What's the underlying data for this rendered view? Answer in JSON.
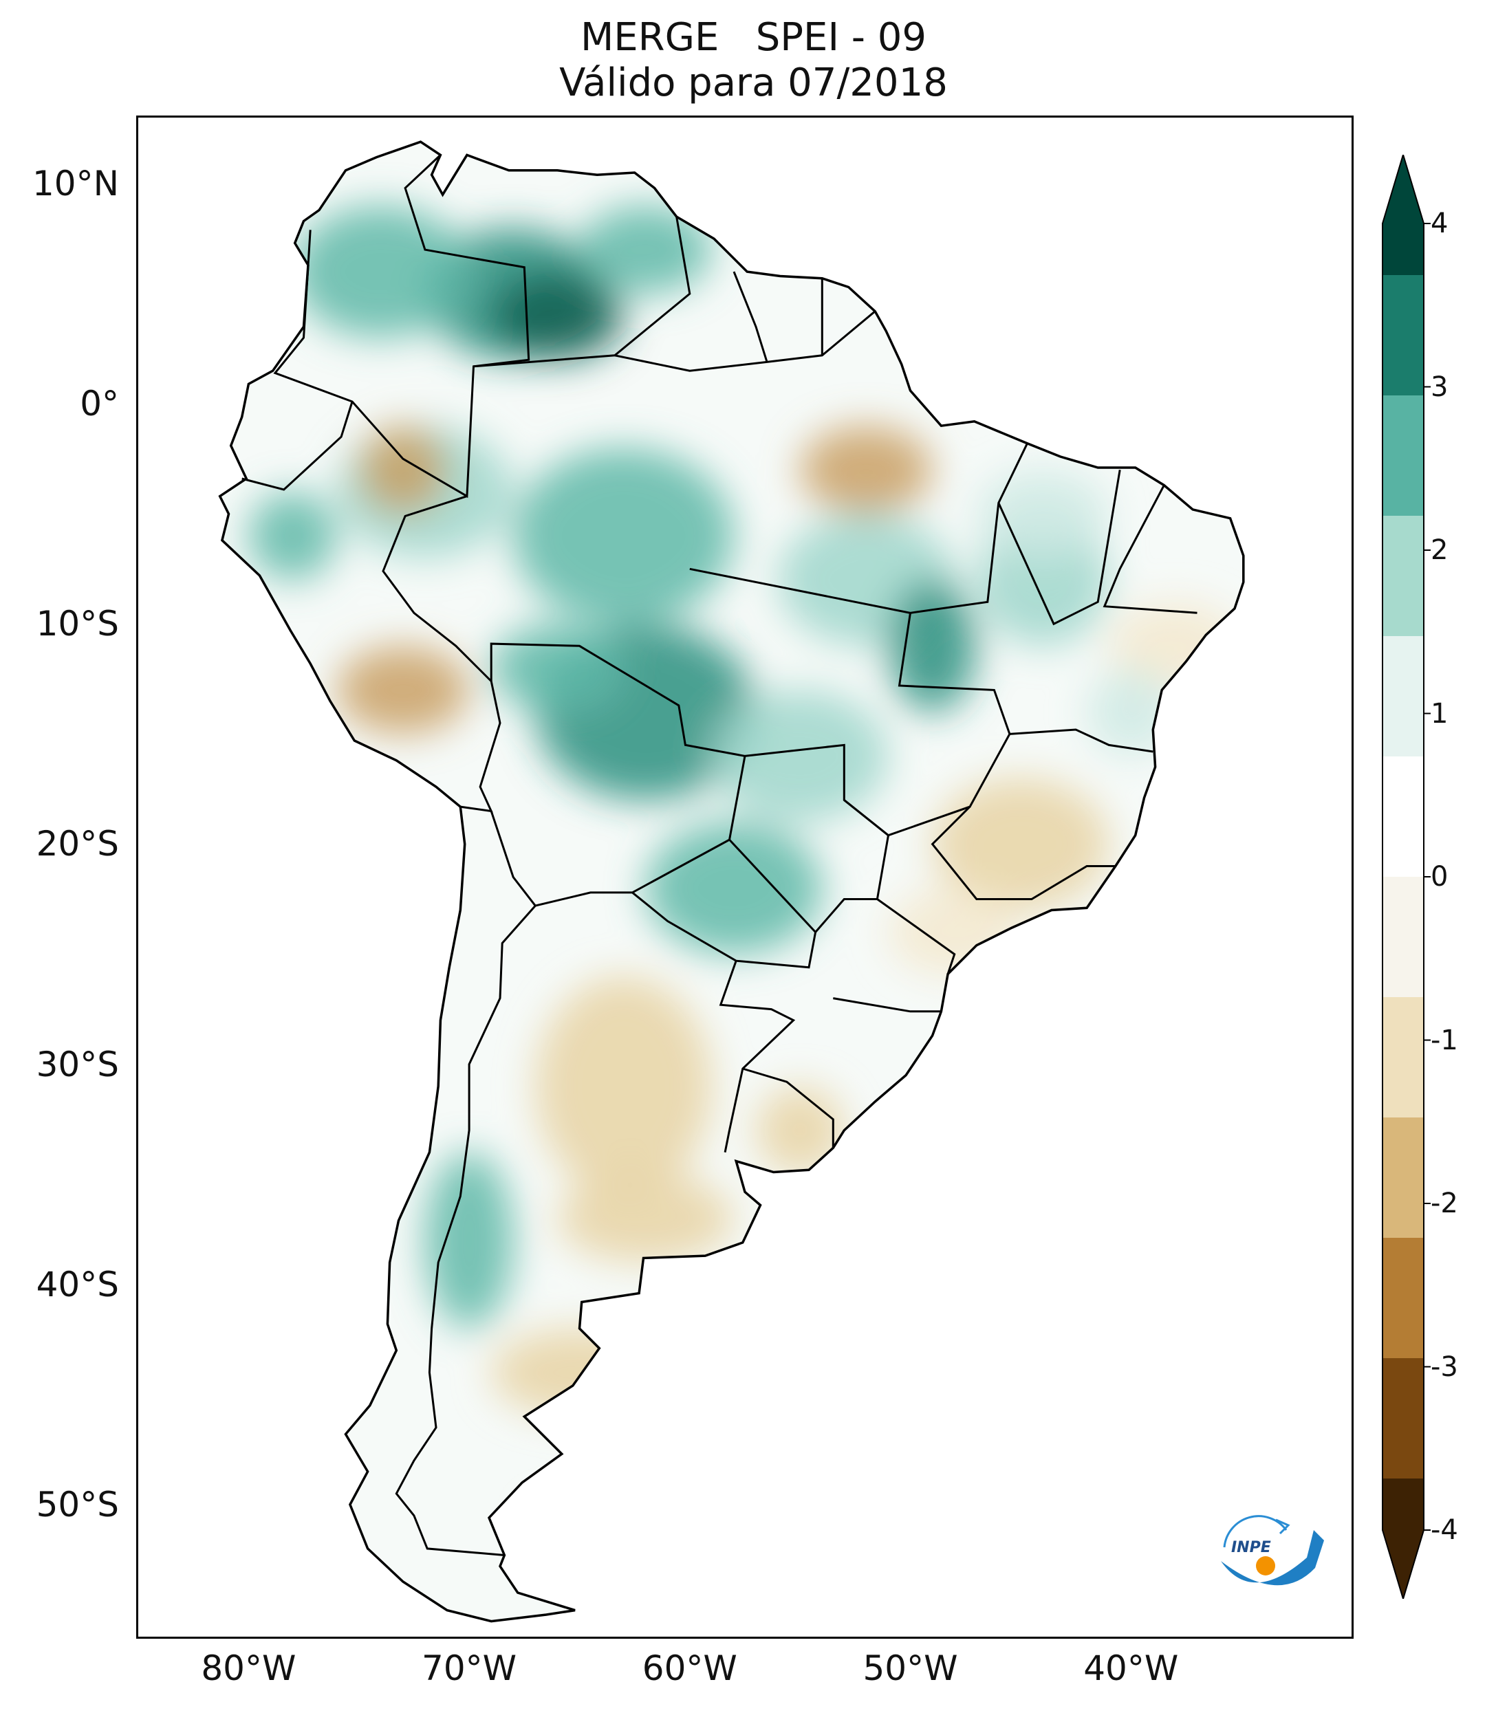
{
  "title": {
    "line1": "MERGE   SPEI - 09",
    "line2": "Válido para 07/2018"
  },
  "map": {
    "extent": {
      "lon_min": -85,
      "lon_max": -30,
      "lat_min": -56,
      "lat_max": 13
    },
    "lat_ticks": [
      {
        "lat": 10,
        "label": "10°N"
      },
      {
        "lat": 0,
        "label": "0°"
      },
      {
        "lat": -10,
        "label": "10°S"
      },
      {
        "lat": -20,
        "label": "20°S"
      },
      {
        "lat": -30,
        "label": "30°S"
      },
      {
        "lat": -40,
        "label": "40°S"
      },
      {
        "lat": -50,
        "label": "50°S"
      }
    ],
    "lon_ticks": [
      {
        "lon": -80,
        "label": "80°W"
      },
      {
        "lon": -70,
        "label": "70°W"
      },
      {
        "lon": -60,
        "label": "60°W"
      },
      {
        "lon": -50,
        "label": "50°W"
      },
      {
        "lon": -40,
        "label": "40°W"
      }
    ],
    "coastline": [
      [
        -77.5,
        8.3
      ],
      [
        -76.8,
        8.8
      ],
      [
        -75.6,
        10.6
      ],
      [
        -74.2,
        11.2
      ],
      [
        -72.2,
        11.9
      ],
      [
        -71.3,
        11.3
      ],
      [
        -71.7,
        10.4
      ],
      [
        -71.2,
        9.5
      ],
      [
        -70.1,
        11.3
      ],
      [
        -68.2,
        10.6
      ],
      [
        -66.0,
        10.6
      ],
      [
        -64.2,
        10.4
      ],
      [
        -62.5,
        10.5
      ],
      [
        -61.6,
        9.8
      ],
      [
        -60.6,
        8.5
      ],
      [
        -58.9,
        7.5
      ],
      [
        -57.4,
        6.0
      ],
      [
        -55.9,
        5.8
      ],
      [
        -54.0,
        5.7
      ],
      [
        -52.8,
        5.3
      ],
      [
        -51.6,
        4.2
      ],
      [
        -51.1,
        3.3
      ],
      [
        -50.4,
        1.8
      ],
      [
        -50.0,
        0.6
      ],
      [
        -48.6,
        -1.0
      ],
      [
        -47.1,
        -0.8
      ],
      [
        -44.7,
        -1.8
      ],
      [
        -43.2,
        -2.4
      ],
      [
        -41.5,
        -2.9
      ],
      [
        -39.8,
        -2.9
      ],
      [
        -38.5,
        -3.7
      ],
      [
        -37.2,
        -4.8
      ],
      [
        -35.5,
        -5.2
      ],
      [
        -34.9,
        -6.9
      ],
      [
        -34.9,
        -8.1
      ],
      [
        -35.3,
        -9.3
      ],
      [
        -36.6,
        -10.5
      ],
      [
        -37.5,
        -11.7
      ],
      [
        -38.6,
        -13.0
      ],
      [
        -39.0,
        -14.8
      ],
      [
        -38.9,
        -16.5
      ],
      [
        -39.4,
        -17.9
      ],
      [
        -39.8,
        -19.6
      ],
      [
        -40.7,
        -21.0
      ],
      [
        -42.0,
        -22.9
      ],
      [
        -43.6,
        -23.0
      ],
      [
        -45.4,
        -23.8
      ],
      [
        -47.0,
        -24.6
      ],
      [
        -48.3,
        -25.9
      ],
      [
        -48.6,
        -27.6
      ],
      [
        -49.0,
        -28.7
      ],
      [
        -50.2,
        -30.5
      ],
      [
        -51.6,
        -31.7
      ],
      [
        -53.0,
        -33.0
      ],
      [
        -53.5,
        -33.8
      ],
      [
        -54.6,
        -34.8
      ],
      [
        -56.2,
        -34.9
      ],
      [
        -57.9,
        -34.4
      ],
      [
        -57.5,
        -35.8
      ],
      [
        -56.8,
        -36.4
      ],
      [
        -57.6,
        -38.1
      ],
      [
        -59.3,
        -38.7
      ],
      [
        -62.1,
        -38.8
      ],
      [
        -62.3,
        -40.4
      ],
      [
        -64.9,
        -40.8
      ],
      [
        -65.0,
        -42.0
      ],
      [
        -64.1,
        -42.9
      ],
      [
        -65.3,
        -44.6
      ],
      [
        -67.5,
        -46.0
      ],
      [
        -65.8,
        -47.7
      ],
      [
        -67.6,
        -49.0
      ],
      [
        -69.1,
        -50.6
      ],
      [
        -68.4,
        -52.3
      ],
      [
        -68.6,
        -52.8
      ],
      [
        -67.8,
        -54.0
      ],
      [
        -65.2,
        -54.8
      ],
      [
        -66.5,
        -55.0
      ],
      [
        -69.0,
        -55.3
      ],
      [
        -71.0,
        -54.8
      ],
      [
        -73.0,
        -53.5
      ],
      [
        -74.6,
        -52.0
      ],
      [
        -75.4,
        -50.0
      ],
      [
        -74.6,
        -48.5
      ],
      [
        -75.6,
        -46.8
      ],
      [
        -74.5,
        -45.5
      ],
      [
        -73.3,
        -43.0
      ],
      [
        -73.7,
        -41.8
      ],
      [
        -73.6,
        -39.0
      ],
      [
        -73.2,
        -37.1
      ],
      [
        -71.8,
        -34.0
      ],
      [
        -71.4,
        -31.0
      ],
      [
        -71.3,
        -28.0
      ],
      [
        -70.9,
        -25.6
      ],
      [
        -70.4,
        -23.0
      ],
      [
        -70.2,
        -20.0
      ],
      [
        -70.4,
        -18.3
      ],
      [
        -71.5,
        -17.4
      ],
      [
        -73.3,
        -16.2
      ],
      [
        -75.2,
        -15.3
      ],
      [
        -76.3,
        -13.5
      ],
      [
        -77.2,
        -11.8
      ],
      [
        -78.1,
        -10.3
      ],
      [
        -79.5,
        -7.8
      ],
      [
        -81.2,
        -6.2
      ],
      [
        -80.9,
        -5.0
      ],
      [
        -81.3,
        -4.2
      ],
      [
        -80.1,
        -3.4
      ],
      [
        -80.8,
        -1.9
      ],
      [
        -80.3,
        -0.6
      ],
      [
        -80.0,
        0.9
      ],
      [
        -78.9,
        1.5
      ],
      [
        -77.5,
        3.5
      ],
      [
        -77.3,
        6.3
      ],
      [
        -77.9,
        7.3
      ],
      [
        -77.5,
        8.3
      ]
    ],
    "colors": [
      "#f4f9f7",
      "#cfeae4",
      "#9fd6cb",
      "#5fb8a8",
      "#2b8f7f",
      "#0f5f52",
      "#f3e9cf",
      "#e8d3a4",
      "#c9a064"
    ]
  },
  "colorbar": {
    "min": -4,
    "max": 4,
    "ticks": [
      {
        "value": 4,
        "label": "4"
      },
      {
        "value": 3,
        "label": "3"
      },
      {
        "value": 2,
        "label": "2"
      },
      {
        "value": 1,
        "label": "1"
      },
      {
        "value": 0,
        "label": "0"
      },
      {
        "value": -1,
        "label": "-1"
      },
      {
        "value": -2,
        "label": "-2"
      },
      {
        "value": -3,
        "label": "-3"
      },
      {
        "value": -4,
        "label": "-4"
      }
    ],
    "colors": [
      "#3d2204",
      "#7a4810",
      "#b47d34",
      "#d9b77a",
      "#efe0bd",
      "#f7f4ec",
      "#ffffff",
      "#e6f3f0",
      "#a7dacd",
      "#58b3a3",
      "#1b7d6c",
      "#00463a"
    ]
  },
  "logo": {
    "text": "INPE"
  }
}
